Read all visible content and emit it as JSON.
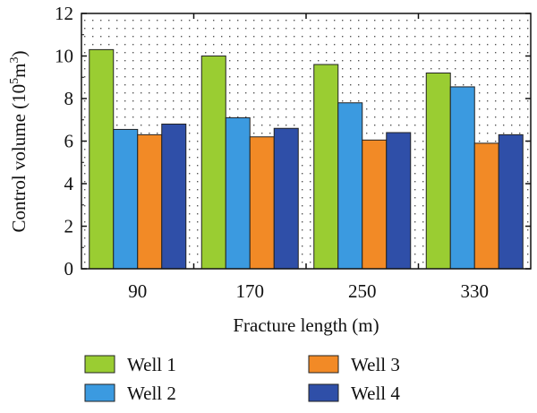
{
  "chart_data": {
    "type": "bar",
    "title": "",
    "xlabel": "Fracture length (m)",
    "ylabel_main": "Control volume (10",
    "ylabel_sup": "5",
    "ylabel_mid": "m",
    "ylabel_sup2": "3",
    "ylabel_end": ")",
    "categories": [
      "90",
      "170",
      "250",
      "330"
    ],
    "series": [
      {
        "name": "Well 1",
        "color": "#9acd32",
        "values": [
          10.3,
          10.0,
          9.6,
          9.2
        ]
      },
      {
        "name": "Well 2",
        "color": "#3b9ae0",
        "values": [
          6.55,
          7.1,
          7.8,
          8.55
        ]
      },
      {
        "name": "Well 3",
        "color": "#f28a26",
        "values": [
          6.3,
          6.2,
          6.05,
          5.9
        ]
      },
      {
        "name": "Well 4",
        "color": "#2f4fa8",
        "values": [
          6.8,
          6.6,
          6.4,
          6.3
        ]
      }
    ],
    "ylim": [
      0,
      12
    ],
    "yticks": [
      "0",
      "2",
      "4",
      "6",
      "8",
      "10",
      "12"
    ],
    "grid": "dotted",
    "legend_position": "bottom"
  }
}
